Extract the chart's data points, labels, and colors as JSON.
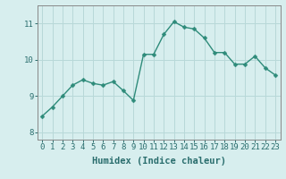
{
  "x": [
    0,
    1,
    2,
    3,
    4,
    5,
    6,
    7,
    8,
    9,
    10,
    11,
    12,
    13,
    14,
    15,
    16,
    17,
    18,
    19,
    20,
    21,
    22,
    23
  ],
  "y": [
    8.45,
    8.7,
    9.0,
    9.3,
    9.45,
    9.35,
    9.3,
    9.4,
    9.15,
    8.88,
    10.15,
    10.15,
    10.7,
    11.05,
    10.9,
    10.85,
    10.6,
    10.2,
    10.2,
    9.88,
    9.88,
    10.1,
    9.78,
    9.58
  ],
  "line_color": "#2e8b7a",
  "marker_color": "#2e8b7a",
  "bg_color": "#d7eeee",
  "grid_color": "#b8d8d8",
  "xlabel": "Humidex (Indice chaleur)",
  "xlabel_fontsize": 7.5,
  "tick_fontsize": 6.5,
  "yticks": [
    8,
    9,
    10,
    11
  ],
  "ylim": [
    7.8,
    11.5
  ],
  "xlim": [
    -0.5,
    23.5
  ],
  "xticks": [
    0,
    1,
    2,
    3,
    4,
    5,
    6,
    7,
    8,
    9,
    10,
    11,
    12,
    13,
    14,
    15,
    16,
    17,
    18,
    19,
    20,
    21,
    22,
    23
  ],
  "linewidth": 1.0,
  "markersize": 2.5
}
